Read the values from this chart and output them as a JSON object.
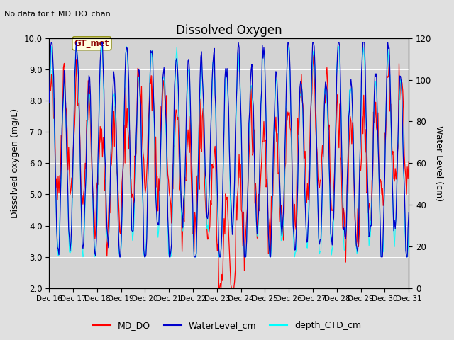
{
  "title": "Dissolved Oxygen",
  "top_left_text": "No data for f_MD_DO_chan",
  "annotation_text": "GT_met",
  "ylabel_left": "Dissolved oxygen (mg/L)",
  "ylabel_right": "Water Level (cm)",
  "ylim_left": [
    2.0,
    10.0
  ],
  "ylim_right": [
    0,
    120
  ],
  "yticks_left": [
    2.0,
    3.0,
    4.0,
    5.0,
    6.0,
    7.0,
    8.0,
    9.0,
    10.0
  ],
  "yticks_right": [
    0,
    20,
    40,
    60,
    80,
    100,
    120
  ],
  "bg_color": "#e0e0e0",
  "plot_bg_color": "#d3d3d3",
  "legend_entries": [
    "MD_DO",
    "WaterLevel_cm",
    "depth_CTD_cm"
  ],
  "legend_colors": [
    "red",
    "#0000cc",
    "cyan"
  ],
  "xticklabels": [
    "Dec 16",
    "Dec 17",
    "Dec 18",
    "Dec 19",
    "Dec 20",
    "Dec 21",
    "Dec 22",
    "Dec 23",
    "Dec 24",
    "Dec 25",
    "Dec 26",
    "Dec 27",
    "Dec 28",
    "Dec 29",
    "Dec 30",
    "Dec 31"
  ],
  "n_ticks": 16
}
